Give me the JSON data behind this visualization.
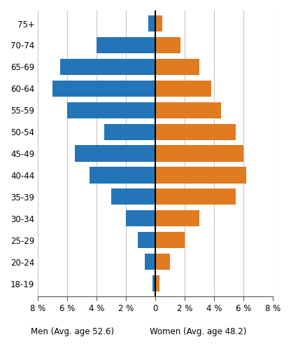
{
  "age_groups": [
    "18-19",
    "20-24",
    "25-29",
    "30-34",
    "35-39",
    "40-44",
    "45-49",
    "50-54",
    "55-59",
    "60-64",
    "65-69",
    "70-74",
    "75+"
  ],
  "men_values": [
    0.2,
    0.7,
    1.2,
    2.0,
    3.0,
    4.5,
    5.5,
    3.5,
    6.0,
    7.0,
    6.5,
    4.0,
    0.5
  ],
  "women_values": [
    0.3,
    1.0,
    2.0,
    3.0,
    5.5,
    6.2,
    6.0,
    5.5,
    4.5,
    3.8,
    3.0,
    1.7,
    0.5
  ],
  "men_color": "#2475B8",
  "women_color": "#E07B20",
  "men_label": "Men (Avg. age 52.6)",
  "women_label": "Women (Avg. age 48.2)",
  "xlim": [
    -8,
    8
  ],
  "xticks": [
    -8,
    -6,
    -4,
    -2,
    0,
    2,
    4,
    6,
    8
  ],
  "xtick_labels": [
    "8 %",
    "6 %",
    "4 %",
    "2 %",
    "0",
    "2 %",
    "4 %",
    "6 %",
    "8 %"
  ],
  "background_color": "#FFFFFF",
  "grid_color": "#C8C8C8",
  "bar_height": 0.75,
  "label_fontsize": 8.5,
  "tick_fontsize": 8.5,
  "ytick_fontsize": 8.5
}
